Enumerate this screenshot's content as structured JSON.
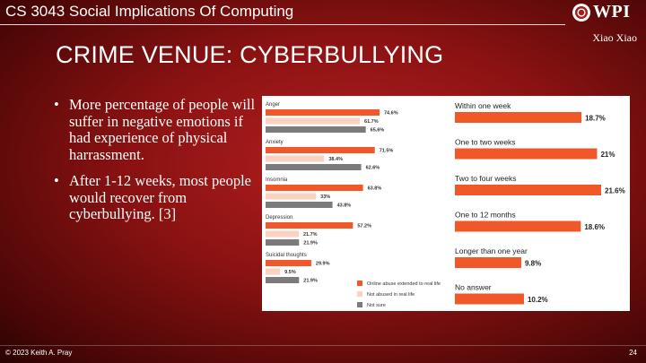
{
  "header": {
    "course_title": "CS 3043 Social Implications Of Computing",
    "logo_text": "WPI",
    "author": "Xiao Xiao"
  },
  "slide": {
    "title": "CRIME VENUE: CYBERBULLYING",
    "bullets": [
      "More percentage of people will suffer in negative emotions if had experience of physical harrassment.",
      "After 1-12 weeks, most people would recover from cyberbullying. [3]"
    ]
  },
  "footer": {
    "copyright": "© 2023 Keith A. Pray",
    "page_number": "24"
  },
  "colors": {
    "series_online": "#f0582a",
    "series_not_abused": "#fbd1c1",
    "series_not_sure": "#7b7b7b",
    "duration_bar": "#f0582a"
  },
  "chart_data": [
    {
      "type": "bar",
      "orientation": "horizontal",
      "categories": [
        "Anger",
        "Anxiety",
        "Insomnia",
        "Depression",
        "Suicidal thoughts"
      ],
      "series": [
        {
          "name": "Online abuse extended to real life",
          "values": [
            74.6,
            71.5,
            63.8,
            57.2,
            29.9
          ],
          "labels": [
            "74.6%",
            "71.5%",
            "63.8%",
            "57.2%",
            "29.9%"
          ]
        },
        {
          "name": "Not abused in real life",
          "values": [
            61.7,
            38.4,
            33,
            21.7,
            9.5
          ],
          "labels": [
            "61.7%",
            "38.4%",
            "33%",
            "21.7%",
            "9.5%"
          ]
        },
        {
          "name": "Not sure",
          "values": [
            65.6,
            62.6,
            43.8,
            21.9,
            21.9
          ],
          "labels": [
            "65.6%",
            "62.6%",
            "43.8%",
            "21.9%",
            "21.9%"
          ]
        }
      ],
      "legend": "bottom-right"
    },
    {
      "type": "bar",
      "orientation": "horizontal",
      "categories": [
        "Within one week",
        "One to two weeks",
        "Two to four weeks",
        "One to 12 months",
        "Longer than one year",
        "No answer"
      ],
      "values": [
        18.7,
        21,
        21.6,
        18.6,
        9.8,
        10.2
      ],
      "labels": [
        "18.7%",
        "21%",
        "21.6%",
        "18.6%",
        "9.8%",
        "10.2%"
      ]
    }
  ]
}
